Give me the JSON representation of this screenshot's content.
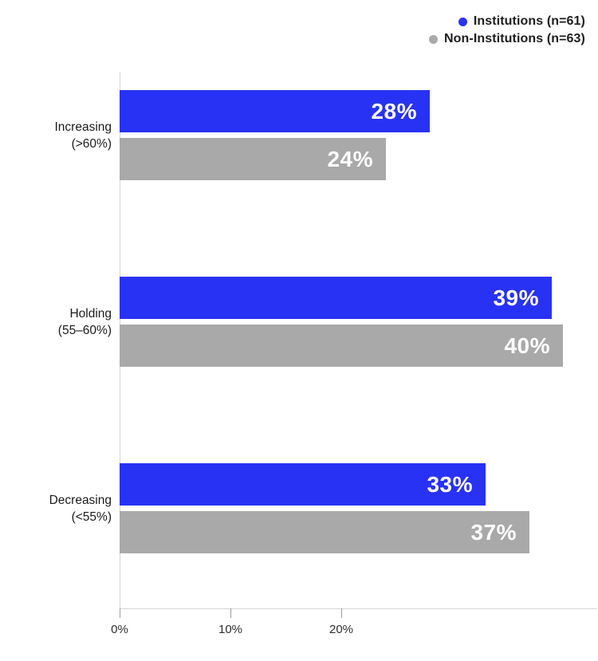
{
  "legend": {
    "items": [
      {
        "id": "institutions",
        "label": "Institutions (n=61)",
        "color": "#2832f5"
      },
      {
        "id": "non-institutions",
        "label": "Non-Institutions (n=63)",
        "color": "#a9a9a9"
      }
    ]
  },
  "chart_data": {
    "type": "bar",
    "orientation": "horizontal",
    "title": "",
    "xlabel": "",
    "ylabel": "",
    "xlim": [
      0,
      43
    ],
    "grid": false,
    "legend_position": "top-right",
    "value_suffix": "%",
    "categories": [
      {
        "id": "increasing",
        "line1": "Increasing",
        "line2": "(>60%)"
      },
      {
        "id": "holding",
        "line1": "Holding",
        "line2": "(55–60%)"
      },
      {
        "id": "decreasing",
        "line1": "Decreasing",
        "line2": "(<55%)"
      }
    ],
    "series": [
      {
        "id": "institutions",
        "name": "Institutions (n=61)",
        "color": "#2832f5",
        "values": [
          28,
          39,
          33
        ],
        "display": [
          "28%",
          "39%",
          "33%"
        ]
      },
      {
        "id": "non-institutions",
        "name": "Non-Institutions (n=63)",
        "color": "#a9a9a9",
        "values": [
          24,
          40,
          37
        ],
        "display": [
          "24%",
          "40%",
          "37%"
        ]
      }
    ],
    "x_ticks": [
      {
        "value": 0,
        "label": "0%"
      },
      {
        "value": 10,
        "label": "10%"
      },
      {
        "value": 20,
        "label": "20%"
      }
    ]
  }
}
